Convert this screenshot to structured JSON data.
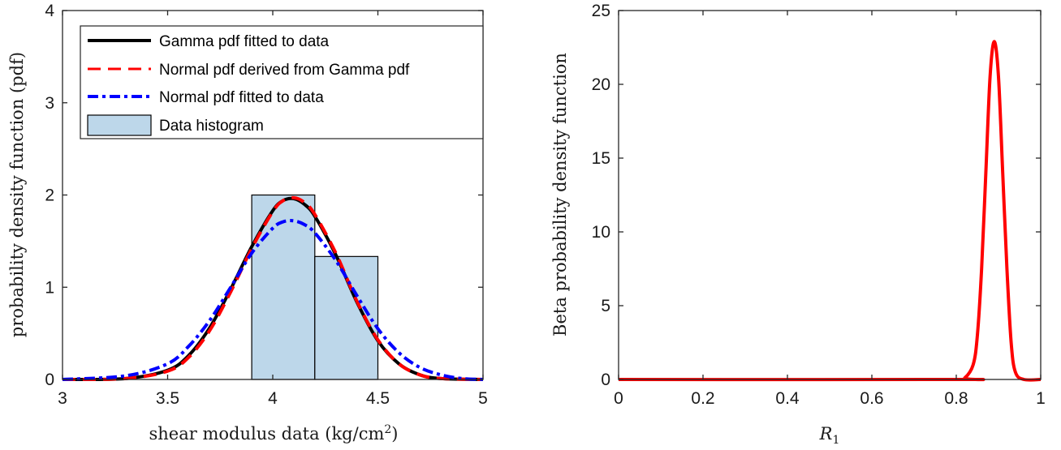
{
  "chart_data": [
    {
      "type": "line",
      "xlabel": "shear modulus data (kg/cm",
      "xlabel_sup": "2",
      "xlabel_end": ")",
      "ylabel": "probability density function (pdf)",
      "xlim": [
        3,
        5
      ],
      "ylim": [
        0,
        4
      ],
      "xticks": [
        3,
        3.5,
        4,
        4.5,
        5
      ],
      "xtick_labels": [
        "3",
        "3.5",
        "4",
        "4.5",
        "5"
      ],
      "yticks": [
        0,
        1,
        2,
        3,
        4
      ],
      "ytick_labels": [
        "0",
        "1",
        "2",
        "3",
        "4"
      ],
      "grid": false,
      "legend_position": "top-right",
      "histogram": {
        "name": "Data histogram",
        "color": "#bdd7ea",
        "bins": [
          {
            "x0": 3.9,
            "x1": 4.2,
            "height": 2.0
          },
          {
            "x0": 4.2,
            "x1": 4.5,
            "height": 1.3333
          }
        ]
      },
      "series": [
        {
          "name": "Gamma pdf fitted to data",
          "color": "#000000",
          "style": "solid",
          "x": [
            3.0,
            3.3,
            3.5,
            3.6,
            3.7,
            3.8,
            3.9,
            4.0,
            4.05,
            4.1,
            4.15,
            4.2,
            4.3,
            4.4,
            4.5,
            4.6,
            4.7,
            4.8,
            5.0
          ],
          "y": [
            0.0,
            0.01,
            0.1,
            0.26,
            0.56,
            0.98,
            1.44,
            1.83,
            1.94,
            1.96,
            1.9,
            1.77,
            1.35,
            0.84,
            0.42,
            0.17,
            0.05,
            0.01,
            0.0
          ]
        },
        {
          "name": "Normal pdf derived from Gamma pdf",
          "color": "#ff0000",
          "style": "dashed",
          "x": [
            3.0,
            3.3,
            3.5,
            3.6,
            3.7,
            3.8,
            3.9,
            4.0,
            4.05,
            4.1,
            4.15,
            4.2,
            4.3,
            4.4,
            4.5,
            4.6,
            4.7,
            4.8,
            5.0
          ],
          "y": [
            0.0,
            0.01,
            0.09,
            0.24,
            0.53,
            0.95,
            1.42,
            1.82,
            1.94,
            1.97,
            1.92,
            1.79,
            1.37,
            0.85,
            0.43,
            0.17,
            0.05,
            0.01,
            0.0
          ]
        },
        {
          "name": "Normal pdf fitted to data",
          "color": "#0000ff",
          "style": "dashdot",
          "x": [
            3.0,
            3.3,
            3.5,
            3.6,
            3.7,
            3.8,
            3.9,
            4.0,
            4.05,
            4.1,
            4.15,
            4.2,
            4.3,
            4.4,
            4.5,
            4.6,
            4.7,
            4.8,
            4.9,
            5.0
          ],
          "y": [
            0.0,
            0.04,
            0.17,
            0.36,
            0.64,
            1.0,
            1.37,
            1.64,
            1.71,
            1.72,
            1.68,
            1.59,
            1.29,
            0.91,
            0.55,
            0.29,
            0.13,
            0.05,
            0.01,
            0.0
          ]
        }
      ],
      "legend": [
        {
          "label": "Gamma pdf fitted to data",
          "kind": "solid",
          "color": "#000000"
        },
        {
          "label": "Normal pdf derived from Gamma pdf",
          "kind": "dashed",
          "color": "#ff0000"
        },
        {
          "label": "Normal pdf fitted to data",
          "kind": "dashdot",
          "color": "#0000ff"
        },
        {
          "label": "Data histogram",
          "kind": "patch",
          "color": "#bdd7ea"
        }
      ]
    },
    {
      "type": "line",
      "xlabel": "R",
      "xlabel_sub": "1",
      "ylabel": "Beta probability density function",
      "xlim": [
        0,
        1
      ],
      "ylim": [
        0,
        25
      ],
      "xticks": [
        0,
        0.2,
        0.4,
        0.6,
        0.8,
        1
      ],
      "xtick_labels": [
        "0",
        "0.2",
        "0.4",
        "0.6",
        "0.8",
        "1"
      ],
      "yticks": [
        0,
        5,
        10,
        15,
        20,
        25
      ],
      "ytick_labels": [
        "0",
        "5",
        "10",
        "15",
        "20",
        "25"
      ],
      "grid": false,
      "series": [
        {
          "name": "",
          "color": "#ff0000",
          "style": "solid",
          "x": [
            0,
            0.8,
            0.82,
            0.84,
            0.85,
            0.86,
            0.87,
            0.88,
            0.89,
            0.9,
            0.91,
            0.92,
            0.93,
            0.94,
            0.96,
            1
          ],
          "y": [
            0,
            0,
            0.1,
            1.0,
            3.0,
            7.5,
            14.0,
            20.5,
            22.9,
            20.5,
            14.0,
            7.5,
            2.5,
            0.5,
            0,
            0
          ]
        }
      ]
    }
  ]
}
